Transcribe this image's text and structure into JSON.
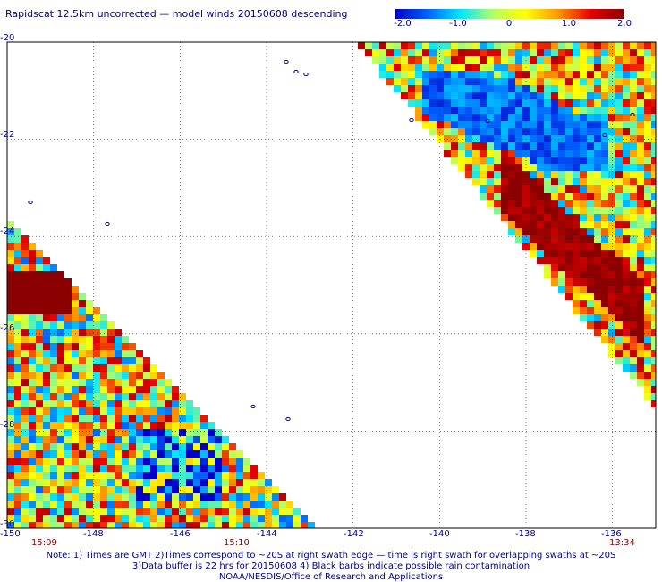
{
  "title": "Rapidscat 12.5km uncorrected — model winds 20150608 descending",
  "colorbar": {
    "labels": [
      "-2.0",
      "-1.0",
      "0",
      "1.0",
      "2.0"
    ],
    "stops": [
      "#0000c8",
      "#0064ff",
      "#00e6ff",
      "#b4ff64",
      "#ffff00",
      "#ff9600",
      "#e60000",
      "#8b0000"
    ]
  },
  "map": {
    "lon_range": [
      -150,
      -135
    ],
    "lat_range": [
      -30,
      -20
    ],
    "lon_labels": [
      "-150",
      "-148",
      "-146",
      "-144",
      "-142",
      "-140",
      "-138",
      "-136"
    ],
    "lat_labels": [
      "-20",
      "-22",
      "-24",
      "-26",
      "-28",
      "-30"
    ],
    "grid": true
  },
  "times": [
    "15:09",
    "15:10",
    "13:34"
  ],
  "notes": [
    "Note: 1) Times are GMT 2)Times correspond to ~20S at right swath edge — time is right swath for overlapping swaths at ~20S",
    "3)Data buffer is 22 hrs for 20150608 4) Black barbs indicate possible rain contamination",
    "NOAA/NESDIS/Office of Research and Applications"
  ]
}
